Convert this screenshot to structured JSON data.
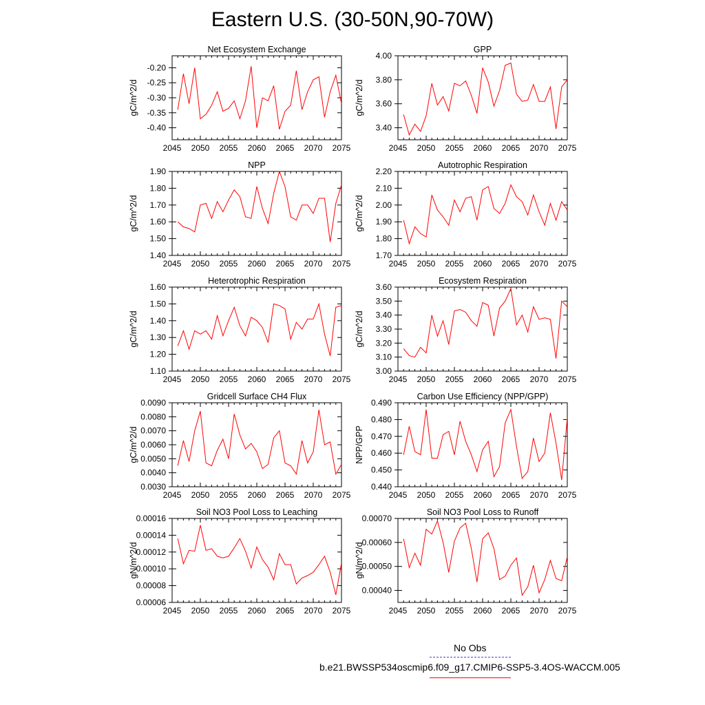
{
  "title": "Eastern U.S. (30-50N,90-70W)",
  "colors": {
    "series": "#ff0000",
    "obs": "#4444cc",
    "axis": "#000000"
  },
  "legend": {
    "obs_label": "No Obs",
    "model_label": "b.e21.BWSSP534oscmip6.f09_g17.CMIP6-SSP5-3.4OS-WACCM.005"
  },
  "chart_data": [
    {
      "type": "line",
      "title": "Net Ecosystem Exchange",
      "ylabel": "gC/m^2/d",
      "xlim": [
        2045,
        2075
      ],
      "ylim": [
        -0.44,
        -0.16
      ],
      "xticks": [
        2045,
        2050,
        2055,
        2060,
        2065,
        2070,
        2075
      ],
      "yticks": [
        -0.4,
        -0.35,
        -0.3,
        -0.25,
        -0.2
      ],
      "ytick_labels": [
        "-0.40",
        "-0.35",
        "-0.30",
        "-0.25",
        "-0.20"
      ],
      "x": [
        2046,
        2047,
        2048,
        2049,
        2050,
        2051,
        2052,
        2053,
        2054,
        2055,
        2056,
        2057,
        2058,
        2059,
        2060,
        2061,
        2062,
        2063,
        2064,
        2065,
        2066,
        2067,
        2068,
        2069,
        2070,
        2071,
        2072,
        2073,
        2074,
        2075
      ],
      "values": [
        -0.34,
        -0.22,
        -0.32,
        -0.2,
        -0.37,
        -0.355,
        -0.325,
        -0.28,
        -0.345,
        -0.335,
        -0.31,
        -0.37,
        -0.31,
        -0.195,
        -0.4,
        -0.3,
        -0.31,
        -0.26,
        -0.405,
        -0.345,
        -0.325,
        -0.21,
        -0.34,
        -0.28,
        -0.24,
        -0.23,
        -0.365,
        -0.28,
        -0.225,
        -0.32
      ]
    },
    {
      "type": "line",
      "title": "GPP",
      "ylabel": "gC/m^2/d",
      "xlim": [
        2045,
        2075
      ],
      "ylim": [
        3.3,
        4.0
      ],
      "xticks": [
        2045,
        2050,
        2055,
        2060,
        2065,
        2070,
        2075
      ],
      "yticks": [
        3.4,
        3.6,
        3.8,
        4.0
      ],
      "ytick_labels": [
        "3.40",
        "3.60",
        "3.80",
        "4.00"
      ],
      "x": [
        2046,
        2047,
        2048,
        2049,
        2050,
        2051,
        2052,
        2053,
        2054,
        2055,
        2056,
        2057,
        2058,
        2059,
        2060,
        2061,
        2062,
        2063,
        2064,
        2065,
        2066,
        2067,
        2068,
        2069,
        2070,
        2071,
        2072,
        2073,
        2074,
        2075
      ],
      "values": [
        3.51,
        3.34,
        3.43,
        3.37,
        3.5,
        3.77,
        3.59,
        3.66,
        3.54,
        3.77,
        3.75,
        3.79,
        3.67,
        3.52,
        3.9,
        3.78,
        3.58,
        3.71,
        3.92,
        3.94,
        3.68,
        3.62,
        3.63,
        3.76,
        3.62,
        3.62,
        3.74,
        3.39,
        3.74,
        3.8
      ]
    },
    {
      "type": "line",
      "title": "NPP",
      "ylabel": "gC/m^2/d",
      "xlim": [
        2045,
        2075
      ],
      "ylim": [
        1.4,
        1.9
      ],
      "xticks": [
        2045,
        2050,
        2055,
        2060,
        2065,
        2070,
        2075
      ],
      "yticks": [
        1.4,
        1.5,
        1.6,
        1.7,
        1.8,
        1.9
      ],
      "ytick_labels": [
        "1.40",
        "1.50",
        "1.60",
        "1.70",
        "1.80",
        "1.90"
      ],
      "x": [
        2046,
        2047,
        2048,
        2049,
        2050,
        2051,
        2052,
        2053,
        2054,
        2055,
        2056,
        2057,
        2058,
        2059,
        2060,
        2061,
        2062,
        2063,
        2064,
        2065,
        2066,
        2067,
        2068,
        2069,
        2070,
        2071,
        2072,
        2073,
        2074,
        2075
      ],
      "values": [
        1.6,
        1.57,
        1.56,
        1.54,
        1.7,
        1.71,
        1.62,
        1.72,
        1.66,
        1.73,
        1.79,
        1.75,
        1.63,
        1.62,
        1.81,
        1.68,
        1.59,
        1.77,
        1.9,
        1.81,
        1.63,
        1.61,
        1.7,
        1.7,
        1.65,
        1.74,
        1.74,
        1.48,
        1.71,
        1.82
      ]
    },
    {
      "type": "line",
      "title": "Autotrophic Respiration",
      "ylabel": "gC/m^2/d",
      "xlim": [
        2045,
        2075
      ],
      "ylim": [
        1.7,
        2.2
      ],
      "xticks": [
        2045,
        2050,
        2055,
        2060,
        2065,
        2070,
        2075
      ],
      "yticks": [
        1.7,
        1.8,
        1.9,
        2.0,
        2.1,
        2.2
      ],
      "ytick_labels": [
        "1.70",
        "1.80",
        "1.90",
        "2.00",
        "2.10",
        "2.20"
      ],
      "x": [
        2046,
        2047,
        2048,
        2049,
        2050,
        2051,
        2052,
        2053,
        2054,
        2055,
        2056,
        2057,
        2058,
        2059,
        2060,
        2061,
        2062,
        2063,
        2064,
        2065,
        2066,
        2067,
        2068,
        2069,
        2070,
        2071,
        2072,
        2073,
        2074,
        2075
      ],
      "values": [
        1.91,
        1.77,
        1.87,
        1.83,
        1.81,
        2.06,
        1.97,
        1.93,
        1.88,
        2.03,
        1.96,
        2.04,
        2.05,
        1.91,
        2.09,
        2.11,
        1.98,
        1.95,
        2.01,
        2.12,
        2.05,
        2.02,
        1.94,
        2.06,
        1.96,
        1.88,
        2.01,
        1.91,
        2.02,
        1.97
      ]
    },
    {
      "type": "line",
      "title": "Heterotrophic Respiration",
      "ylabel": "gC/m^2/d",
      "xlim": [
        2045,
        2075
      ],
      "ylim": [
        1.1,
        1.6
      ],
      "xticks": [
        2045,
        2050,
        2055,
        2060,
        2065,
        2070,
        2075
      ],
      "yticks": [
        1.1,
        1.2,
        1.3,
        1.4,
        1.5,
        1.6
      ],
      "ytick_labels": [
        "1.10",
        "1.20",
        "1.30",
        "1.40",
        "1.50",
        "1.60"
      ],
      "x": [
        2046,
        2047,
        2048,
        2049,
        2050,
        2051,
        2052,
        2053,
        2054,
        2055,
        2056,
        2057,
        2058,
        2059,
        2060,
        2061,
        2062,
        2063,
        2064,
        2065,
        2066,
        2067,
        2068,
        2069,
        2070,
        2071,
        2072,
        2073,
        2074,
        2075
      ],
      "values": [
        1.25,
        1.34,
        1.23,
        1.34,
        1.32,
        1.34,
        1.29,
        1.43,
        1.31,
        1.4,
        1.48,
        1.37,
        1.31,
        1.42,
        1.4,
        1.36,
        1.27,
        1.5,
        1.49,
        1.47,
        1.29,
        1.39,
        1.35,
        1.41,
        1.41,
        1.5,
        1.32,
        1.19,
        1.48,
        1.49
      ]
    },
    {
      "type": "line",
      "title": "Ecosystem Respiration",
      "ylabel": "gC/m^2/d",
      "xlim": [
        2045,
        2075
      ],
      "ylim": [
        3.0,
        3.6
      ],
      "xticks": [
        2045,
        2050,
        2055,
        2060,
        2065,
        2070,
        2075
      ],
      "yticks": [
        3.0,
        3.1,
        3.2,
        3.3,
        3.4,
        3.5,
        3.6
      ],
      "ytick_labels": [
        "3.00",
        "3.10",
        "3.20",
        "3.30",
        "3.40",
        "3.50",
        "3.60"
      ],
      "x": [
        2046,
        2047,
        2048,
        2049,
        2050,
        2051,
        2052,
        2053,
        2054,
        2055,
        2056,
        2057,
        2058,
        2059,
        2060,
        2061,
        2062,
        2063,
        2064,
        2065,
        2066,
        2067,
        2068,
        2069,
        2070,
        2071,
        2072,
        2073,
        2074,
        2075
      ],
      "values": [
        3.16,
        3.11,
        3.1,
        3.17,
        3.13,
        3.4,
        3.25,
        3.36,
        3.19,
        3.43,
        3.44,
        3.42,
        3.36,
        3.32,
        3.49,
        3.47,
        3.25,
        3.45,
        3.5,
        3.59,
        3.33,
        3.4,
        3.28,
        3.46,
        3.37,
        3.38,
        3.37,
        3.09,
        3.5,
        3.46
      ]
    },
    {
      "type": "line",
      "title": "Gridcell Surface CH4 Flux",
      "ylabel": "gC/m^2/d",
      "xlim": [
        2045,
        2075
      ],
      "ylim": [
        0.003,
        0.009
      ],
      "xticks": [
        2045,
        2050,
        2055,
        2060,
        2065,
        2070,
        2075
      ],
      "yticks": [
        0.003,
        0.004,
        0.005,
        0.006,
        0.007,
        0.008,
        0.009
      ],
      "ytick_labels": [
        "0.0030",
        "0.0040",
        "0.0050",
        "0.0060",
        "0.0070",
        "0.0080",
        "0.0090"
      ],
      "x": [
        2046,
        2047,
        2048,
        2049,
        2050,
        2051,
        2052,
        2053,
        2054,
        2055,
        2056,
        2057,
        2058,
        2059,
        2060,
        2061,
        2062,
        2063,
        2064,
        2065,
        2066,
        2067,
        2068,
        2069,
        2070,
        2071,
        2072,
        2073,
        2074,
        2075
      ],
      "values": [
        0.0045,
        0.0063,
        0.0048,
        0.007,
        0.0084,
        0.0047,
        0.0045,
        0.0056,
        0.0064,
        0.005,
        0.0082,
        0.0067,
        0.0057,
        0.0061,
        0.0055,
        0.0043,
        0.0046,
        0.0065,
        0.007,
        0.0047,
        0.0045,
        0.0039,
        0.0063,
        0.0047,
        0.0055,
        0.0085,
        0.006,
        0.0062,
        0.0039,
        0.0046
      ]
    },
    {
      "type": "line",
      "title": "Carbon Use Efficiency (NPP/GPP)",
      "ylabel": "NPP/GPP",
      "xlim": [
        2045,
        2075
      ],
      "ylim": [
        0.44,
        0.49
      ],
      "xticks": [
        2045,
        2050,
        2055,
        2060,
        2065,
        2070,
        2075
      ],
      "yticks": [
        0.44,
        0.45,
        0.46,
        0.47,
        0.48,
        0.49
      ],
      "ytick_labels": [
        "0.440",
        "0.450",
        "0.460",
        "0.470",
        "0.480",
        "0.490"
      ],
      "x": [
        2046,
        2047,
        2048,
        2049,
        2050,
        2051,
        2052,
        2053,
        2054,
        2055,
        2056,
        2057,
        2058,
        2059,
        2060,
        2061,
        2062,
        2063,
        2064,
        2065,
        2066,
        2067,
        2068,
        2069,
        2070,
        2071,
        2072,
        2073,
        2074,
        2075
      ],
      "values": [
        0.459,
        0.476,
        0.461,
        0.459,
        0.486,
        0.457,
        0.457,
        0.471,
        0.473,
        0.459,
        0.479,
        0.467,
        0.459,
        0.449,
        0.462,
        0.467,
        0.446,
        0.452,
        0.478,
        0.486,
        0.464,
        0.445,
        0.449,
        0.469,
        0.455,
        0.46,
        0.484,
        0.466,
        0.444,
        0.481
      ]
    },
    {
      "type": "line",
      "title": "Soil NO3 Pool Loss to Leaching",
      "ylabel": "gN/m^2/d",
      "xlim": [
        2045,
        2075
      ],
      "ylim": [
        6e-05,
        0.00016
      ],
      "xticks": [
        2045,
        2050,
        2055,
        2060,
        2065,
        2070,
        2075
      ],
      "yticks": [
        6e-05,
        8e-05,
        0.0001,
        0.00012,
        0.00014,
        0.00016
      ],
      "ytick_labels": [
        "0.00006",
        "0.00008",
        "0.00010",
        "0.00012",
        "0.00014",
        "0.00016"
      ],
      "x": [
        2046,
        2047,
        2048,
        2049,
        2050,
        2051,
        2052,
        2053,
        2054,
        2055,
        2056,
        2057,
        2058,
        2059,
        2060,
        2061,
        2062,
        2063,
        2064,
        2065,
        2066,
        2067,
        2068,
        2069,
        2070,
        2071,
        2072,
        2073,
        2074,
        2075
      ],
      "values": [
        0.000136,
        0.000106,
        0.000122,
        0.000121,
        0.000152,
        0.000122,
        0.000124,
        0.000115,
        0.000113,
        0.000115,
        0.000125,
        0.000136,
        0.000121,
        0.000101,
        0.000126,
        0.000111,
        0.000102,
        8.7e-05,
        0.000118,
        0.000105,
        0.000105,
        8.2e-05,
        8.9e-05,
        9.2e-05,
        9.6e-05,
        0.000105,
        0.000115,
        9.6e-05,
        6.9e-05,
        0.000107
      ]
    },
    {
      "type": "line",
      "title": "Soil NO3 Pool Loss to Runoff",
      "ylabel": "gN/m^2/d",
      "xlim": [
        2045,
        2075
      ],
      "ylim": [
        0.00035,
        0.0007
      ],
      "xticks": [
        2045,
        2050,
        2055,
        2060,
        2065,
        2070,
        2075
      ],
      "yticks": [
        0.0004,
        0.0005,
        0.0006,
        0.0007
      ],
      "ytick_labels": [
        "0.00040",
        "0.00050",
        "0.00060",
        "0.00070"
      ],
      "x": [
        2046,
        2047,
        2048,
        2049,
        2050,
        2051,
        2052,
        2053,
        2054,
        2055,
        2056,
        2057,
        2058,
        2059,
        2060,
        2061,
        2062,
        2063,
        2064,
        2065,
        2066,
        2067,
        2068,
        2069,
        2070,
        2071,
        2072,
        2073,
        2074,
        2075
      ],
      "values": [
        0.000615,
        0.000495,
        0.000555,
        0.000505,
        0.000655,
        0.000635,
        0.00069,
        0.0006,
        0.000475,
        0.000605,
        0.00066,
        0.00068,
        0.000575,
        0.000435,
        0.000615,
        0.00064,
        0.000575,
        0.000445,
        0.00046,
        0.000505,
        0.000535,
        0.00038,
        0.000415,
        0.000505,
        0.00039,
        0.000445,
        0.000525,
        0.00045,
        0.00044,
        0.00054
      ]
    }
  ]
}
